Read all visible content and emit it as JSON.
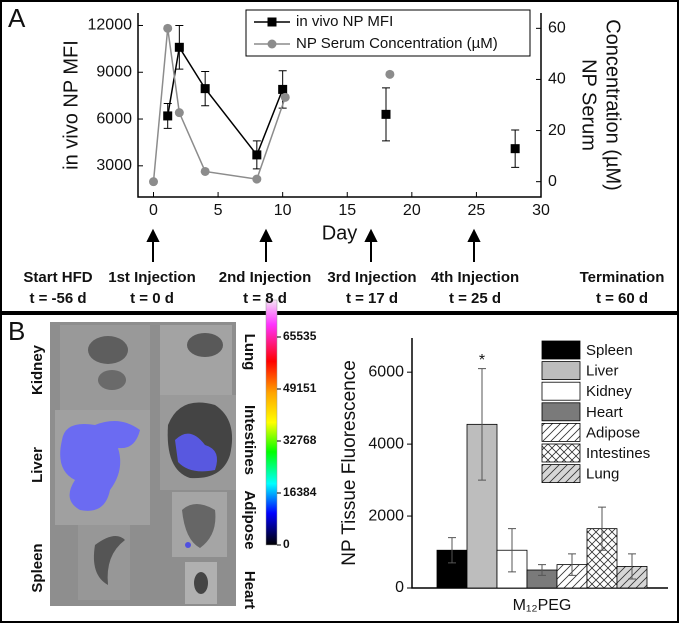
{
  "panel_labels": [
    "A",
    "B"
  ],
  "chart_data": [
    {
      "type": "line",
      "x_label": "Day",
      "y_label": "in vivo NP MFI",
      "y2_label": [
        "NP Serum",
        "Concentration (µM)"
      ],
      "xlim": [
        -1.2,
        30
      ],
      "xticks": [
        0,
        5,
        10,
        15,
        20,
        25,
        30
      ],
      "ylim": [
        1000,
        12800
      ],
      "yticks": [
        3000,
        6000,
        9000,
        12000
      ],
      "y2lim": [
        -6,
        66
      ],
      "y2ticks": [
        0,
        20,
        40,
        60
      ],
      "legend": "top",
      "series": [
        {
          "name": "in vivo NP MFI",
          "color": "#000000",
          "marker": "square",
          "x": [
            1.1,
            2,
            4,
            8,
            10,
            null,
            18,
            null,
            28
          ],
          "values": [
            6200,
            10600,
            7950,
            3700,
            7900,
            null,
            6300,
            null,
            4100
          ],
          "errors": [
            800,
            1400,
            1100,
            900,
            1200,
            null,
            1700,
            null,
            1200
          ]
        },
        {
          "name": "NP Serum Concentration (µM)",
          "color": "#8c8c8c",
          "marker": "circle",
          "axis": "y2",
          "x": [
            0,
            1.1,
            2,
            4,
            8,
            10.2,
            null,
            18.3
          ],
          "values": [
            0,
            60,
            27,
            4,
            1,
            33,
            null,
            42
          ]
        }
      ]
    },
    {
      "type": "bar",
      "y_label": "NP Tissue Fluorescence",
      "categories": [
        "M₁₂PEG"
      ],
      "ylim": [
        0,
        6950
      ],
      "yticks": [
        0,
        2000,
        4000,
        6000
      ],
      "annotation": "*",
      "legend": "top-right",
      "series": [
        {
          "name": "Spleen",
          "color": "#000000",
          "values": [
            1050
          ],
          "errors": [
            350
          ]
        },
        {
          "name": "Liver",
          "color": "#bdbdbd",
          "values": [
            4550
          ],
          "errors": [
            1550
          ]
        },
        {
          "name": "Kidney",
          "color": "#ffffff",
          "values": [
            1050
          ],
          "errors": [
            600
          ]
        },
        {
          "name": "Heart",
          "color": "#7a7a7a",
          "values": [
            500
          ],
          "errors": [
            150
          ]
        },
        {
          "name": "Adipose",
          "color": "#ffffff",
          "pattern": "diagonal",
          "values": [
            650
          ],
          "errors": [
            300
          ]
        },
        {
          "name": "Intestines",
          "color": "#ffffff",
          "pattern": "crosshatch",
          "values": [
            1650
          ],
          "errors": [
            600
          ]
        },
        {
          "name": "Lung",
          "color": "#d6d6d6",
          "pattern": "diagonal",
          "values": [
            600
          ],
          "errors": [
            350
          ]
        }
      ]
    }
  ],
  "timeline": [
    {
      "label": "Start HFD",
      "time": "t = -56 d"
    },
    {
      "label": "1st Injection",
      "time": "t = 0 d"
    },
    {
      "label": "2nd Injection",
      "time": "t = 8 d"
    },
    {
      "label": "3rd Injection",
      "time": "t = 17 d"
    },
    {
      "label": "4th Injection",
      "time": "t = 25 d"
    },
    {
      "label": "Termination",
      "time": "t = 60 d"
    }
  ],
  "organ_image": {
    "left_labels": [
      "Kidney",
      "Liver",
      "Spleen"
    ],
    "right_labels": [
      "Lung",
      "Intestines",
      "Adipose",
      "Heart"
    ]
  },
  "colorbar": {
    "ticks": [
      65535,
      49151,
      32768,
      16384,
      0
    ]
  }
}
